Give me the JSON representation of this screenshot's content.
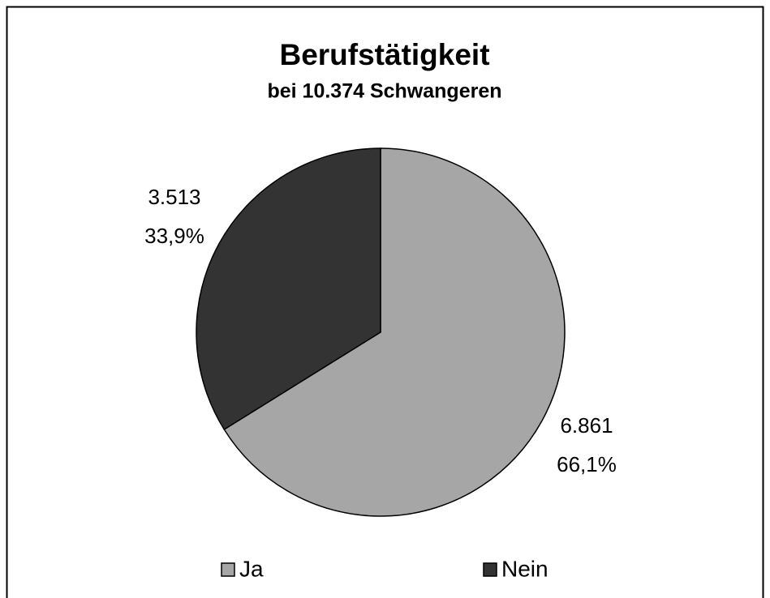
{
  "chart_data": {
    "type": "pie",
    "title": "Berufstätigkeit",
    "subtitle": "bei 10.374 Schwangeren",
    "categories": [
      "Ja",
      "Nein"
    ],
    "values": [
      6861,
      3513
    ],
    "value_labels": [
      "6.861",
      "3.513"
    ],
    "percents": [
      66.1,
      33.9
    ],
    "percent_labels": [
      "66,1%",
      "33,9%"
    ],
    "colors": [
      "#a6a6a6",
      "#333333"
    ],
    "legend": "bottom"
  }
}
